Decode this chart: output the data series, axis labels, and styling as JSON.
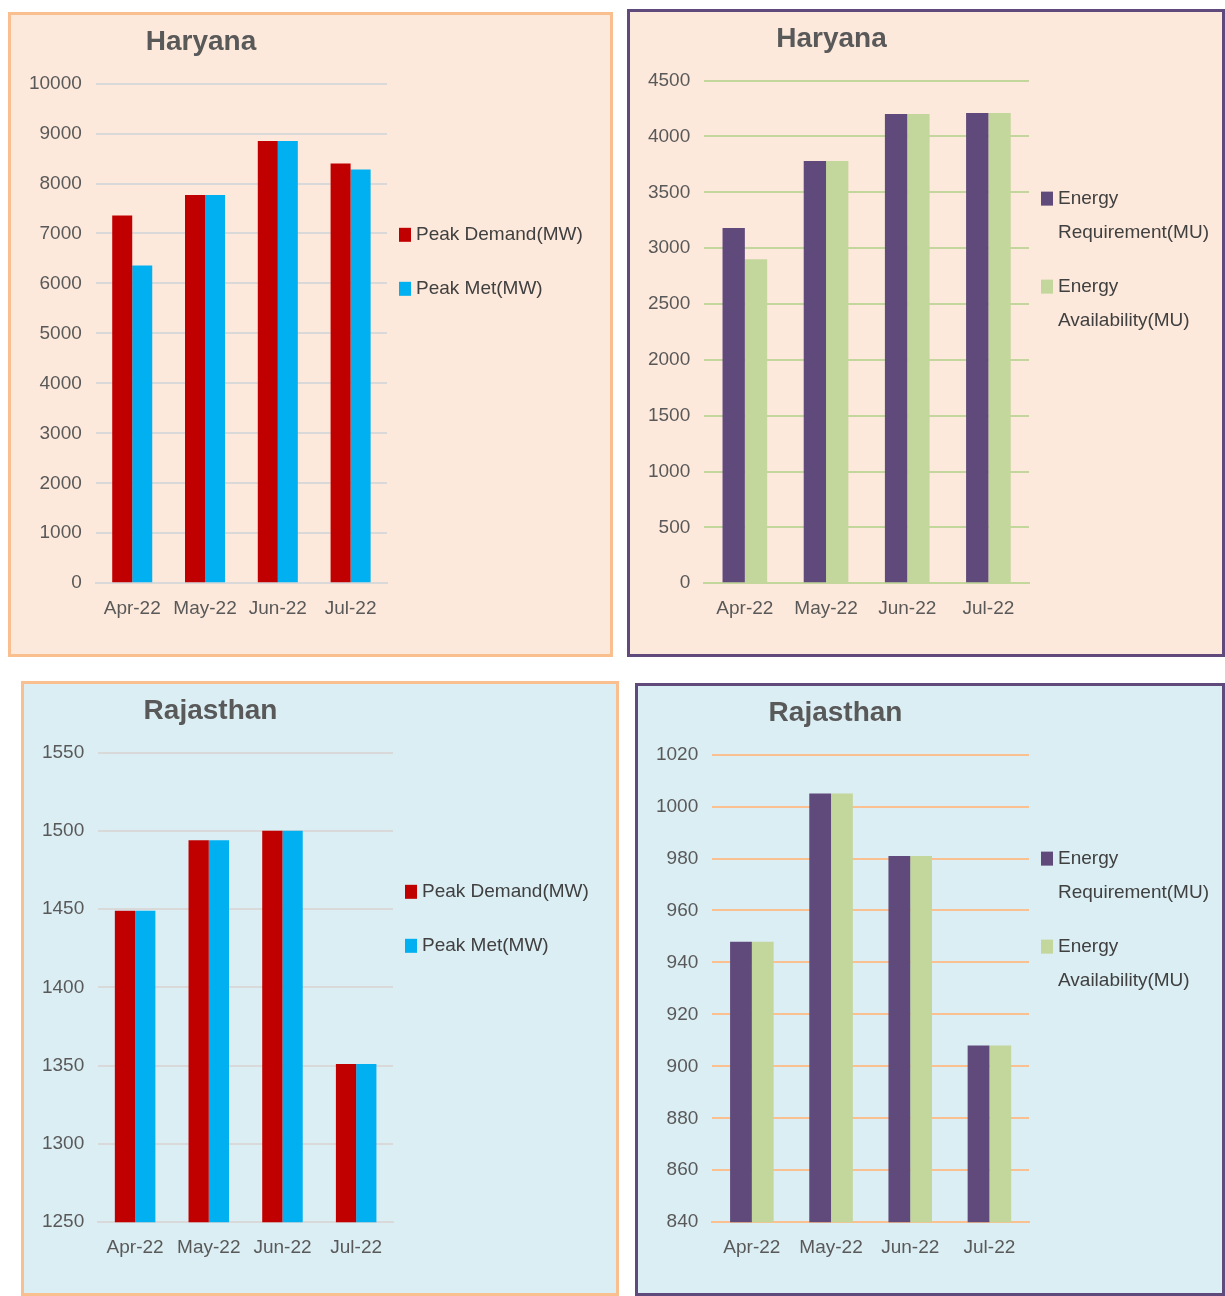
{
  "chart_data": [
    {
      "type": "bar",
      "title": "Haryana",
      "categories": [
        "Apr-22",
        "May-22",
        "Jun-22",
        "Jul-22"
      ],
      "series": [
        {
          "name": "Peak Demand(MW)",
          "color": "#c00000",
          "values": [
            7360,
            7770,
            8850,
            8400
          ]
        },
        {
          "name": "Peak Met(MW)",
          "color": "#00b0f0",
          "values": [
            6360,
            7770,
            8850,
            8280
          ]
        }
      ],
      "ylim": [
        0,
        10000
      ],
      "yticks": [
        0,
        1000,
        2000,
        3000,
        4000,
        5000,
        6000,
        7000,
        8000,
        9000,
        10000
      ],
      "grid": "y",
      "legend": "right"
    },
    {
      "type": "bar",
      "title": "Haryana",
      "categories": [
        "Apr-22",
        "May-22",
        "Jun-22",
        "Jul-22"
      ],
      "series": [
        {
          "name": "Energy Requirement(MU)",
          "color": "#604a7b",
          "values": [
            3180,
            3780,
            4200,
            4210
          ]
        },
        {
          "name": "Energy Availability(MU)",
          "color": "#c3d69b",
          "values": [
            2900,
            3780,
            4200,
            4210
          ]
        }
      ],
      "ylim": [
        0,
        4500
      ],
      "yticks": [
        0,
        500,
        1000,
        1500,
        2000,
        2500,
        3000,
        3500,
        4000,
        4500
      ],
      "grid": "y",
      "legend": "right"
    },
    {
      "type": "bar",
      "title": "Rajasthan",
      "categories": [
        "Apr-22",
        "May-22",
        "Jun-22",
        "Jul-22"
      ],
      "series": [
        {
          "name": "Peak Demand(MW)",
          "color": "#c00000",
          "values": [
            1449,
            1494,
            1500,
            1351
          ]
        },
        {
          "name": "Peak Met(MW)",
          "color": "#00b0f0",
          "values": [
            1449,
            1494,
            1500,
            1351
          ]
        }
      ],
      "ylim": [
        1250,
        1550
      ],
      "yticks": [
        1250,
        1300,
        1350,
        1400,
        1450,
        1500,
        1550
      ],
      "grid": "y",
      "legend": "right"
    },
    {
      "type": "bar",
      "title": "Rajasthan",
      "categories": [
        "Apr-22",
        "May-22",
        "Jun-22",
        "Jul-22"
      ],
      "series": [
        {
          "name": "Energy Requirement(MU)",
          "color": "#604a7b",
          "values": [
            948,
            1005,
            981,
            908
          ]
        },
        {
          "name": "Energy Availability(MU)",
          "color": "#c3d69b",
          "values": [
            948,
            1005,
            981,
            908
          ]
        }
      ],
      "ylim": [
        840,
        1020
      ],
      "yticks": [
        840,
        860,
        880,
        900,
        920,
        940,
        960,
        980,
        1000,
        1020
      ],
      "grid": "y",
      "legend": "right"
    }
  ]
}
